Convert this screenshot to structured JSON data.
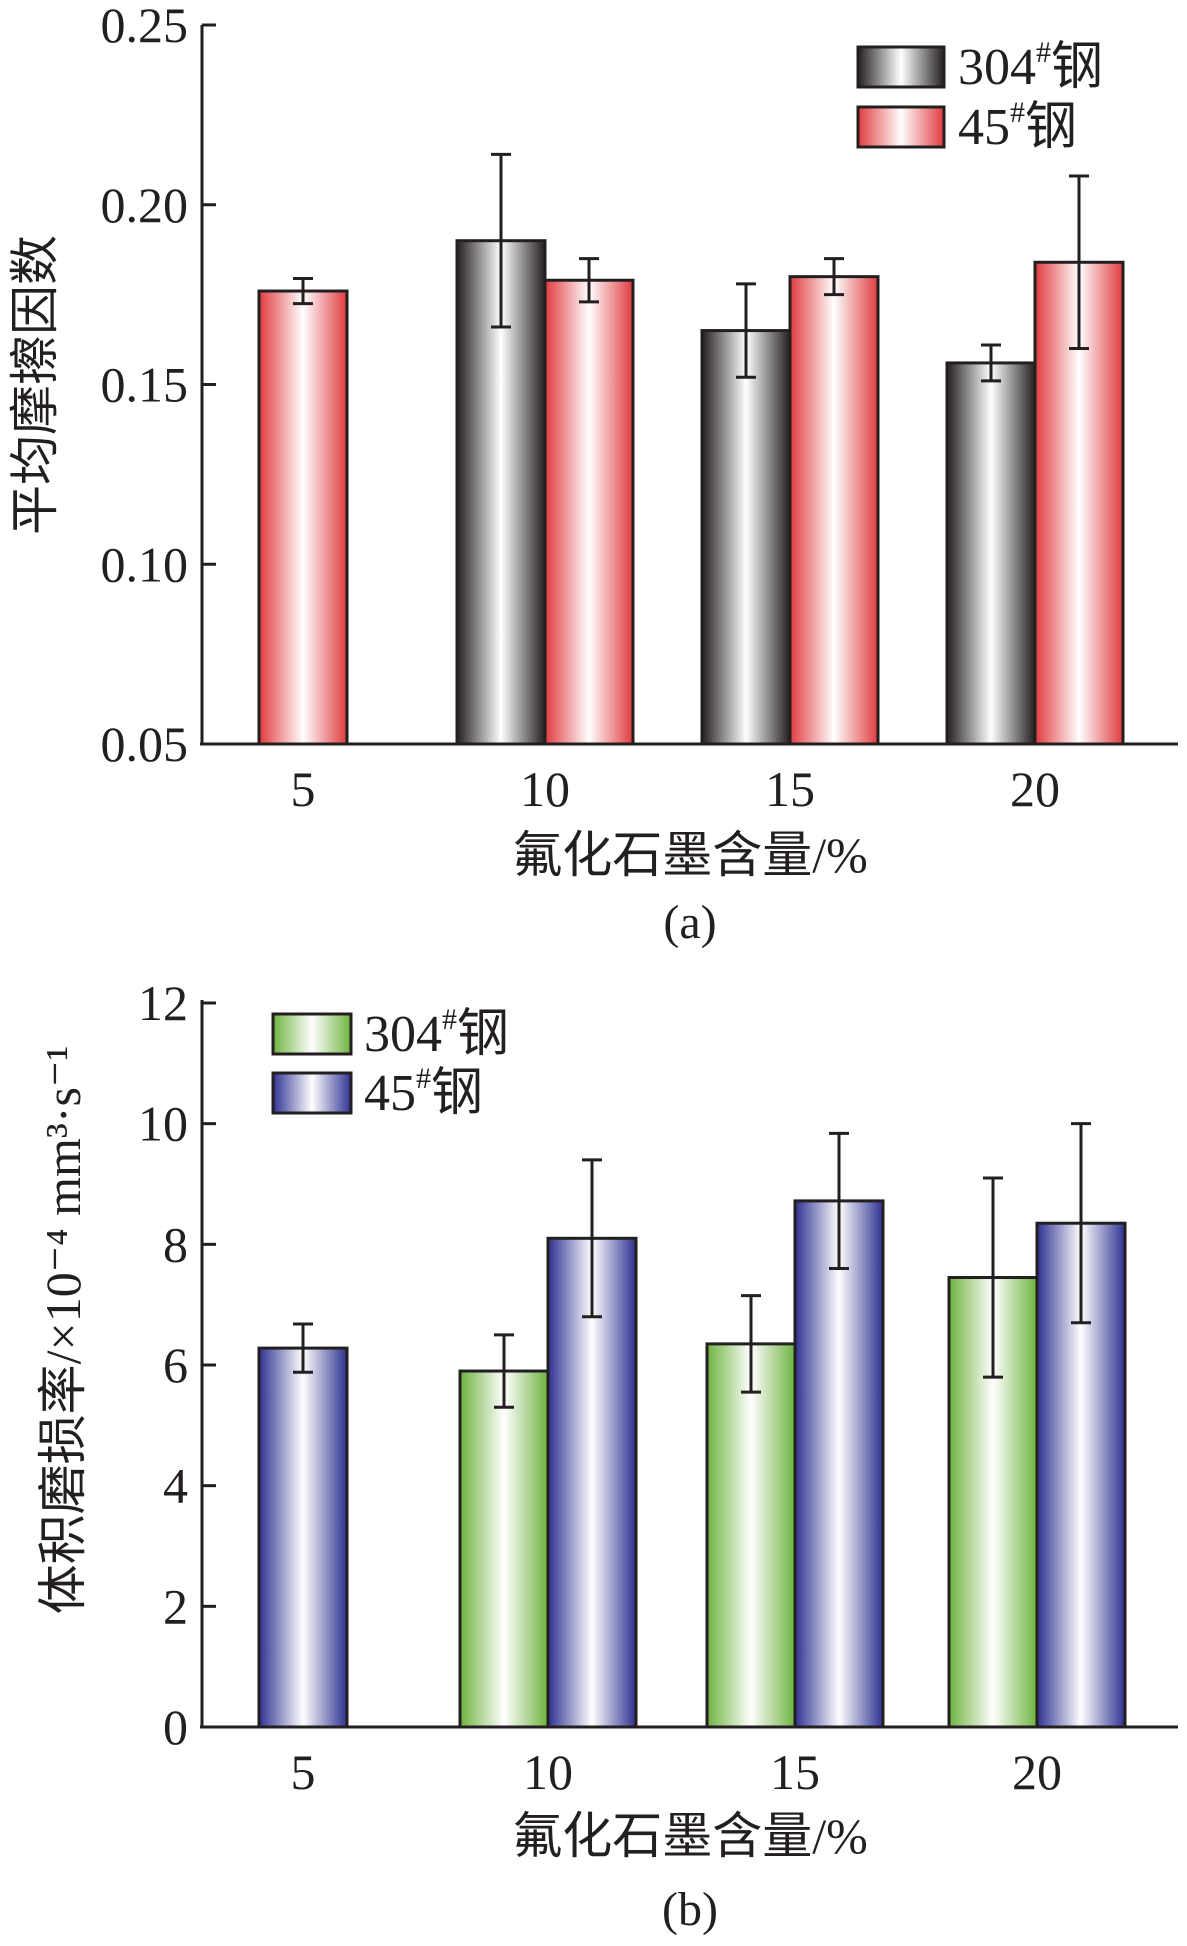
{
  "chart_data": [
    {
      "panel": "(a)",
      "type": "bar",
      "categories": [
        "5",
        "10",
        "15",
        "20"
      ],
      "xlabel": "氟化石墨含量/%",
      "ylabel": "平均摩擦因数",
      "ylim": [
        0.05,
        0.25
      ],
      "yticks": [
        "0.05",
        "0.10",
        "0.15",
        "0.20",
        "0.25"
      ],
      "legend_position": "top-right",
      "series": [
        {
          "name": "304#钢",
          "legend_base": "304",
          "legend_suffix": "钢",
          "color": "#231f20",
          "values": [
            null,
            0.19,
            0.165,
            0.156
          ],
          "errors": [
            null,
            0.024,
            0.013,
            0.005
          ]
        },
        {
          "name": "45#钢",
          "legend_base": "45",
          "legend_suffix": "钢",
          "color": "#e03a3e",
          "values": [
            0.176,
            0.179,
            0.18,
            0.184
          ],
          "errors": [
            0.0035,
            0.006,
            0.005,
            0.024
          ]
        }
      ]
    },
    {
      "panel": "(b)",
      "type": "bar",
      "categories": [
        "5",
        "10",
        "15",
        "20"
      ],
      "xlabel": "氟化石墨含量/%",
      "ylabel": "体积磨损率/×10⁻⁴ mm³·s⁻¹",
      "ylim": [
        0,
        12
      ],
      "yticks": [
        "0",
        "2",
        "4",
        "6",
        "8",
        "10",
        "12"
      ],
      "legend_position": "top-left",
      "series": [
        {
          "name": "304#钢",
          "legend_base": "304",
          "legend_suffix": "钢",
          "color": "#6db33f",
          "values": [
            null,
            5.9,
            6.35,
            7.45
          ],
          "errors": [
            null,
            0.6,
            0.8,
            1.65
          ]
        },
        {
          "name": "45#钢",
          "legend_base": "45",
          "legend_suffix": "钢",
          "color": "#2e3192",
          "values": [
            6.28,
            8.1,
            8.72,
            8.35
          ],
          "errors": [
            0.4,
            1.3,
            1.12,
            1.65
          ]
        }
      ]
    }
  ]
}
